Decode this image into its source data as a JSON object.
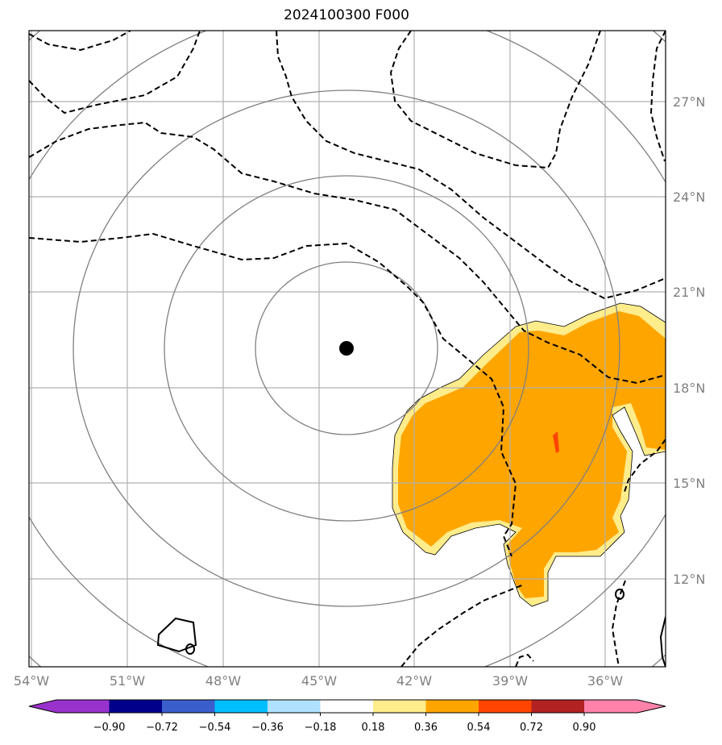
{
  "title": "2024100300 F000",
  "map": {
    "lon_labels": [
      "54°W",
      "51°W",
      "48°W",
      "45°W",
      "42°W",
      "39°W",
      "36°W"
    ],
    "lat_labels": [
      "27°N",
      "24°N",
      "21°N",
      "18°N",
      "15°N",
      "12°N"
    ],
    "center_marker": {
      "lon": -44.1,
      "lat": 19.2
    },
    "extent": {
      "lon": [
        -54,
        -34
      ],
      "lat": [
        9,
        29
      ]
    },
    "range_rings": 5
  },
  "colorbar": {
    "tick_labels": [
      "−0.90",
      "−0.72",
      "−0.54",
      "−0.36",
      "−0.18",
      "0.18",
      "0.36",
      "0.54",
      "0.72",
      "0.90"
    ],
    "colors": [
      "#9932cc",
      "#00008b",
      "#3a5fcd",
      "#00bfff",
      "#b0e2ff",
      "#ffffff",
      "#ffec8b",
      "#ffa500",
      "#ff4500",
      "#b22222",
      "#ff82ab"
    ],
    "extend": "both"
  },
  "colors": {
    "fill_main": "#ffa500",
    "fill_light": "#ffec8b",
    "fill_peak": "#ff4500",
    "rings": "#808080",
    "grid": "#b0b0b0"
  }
}
